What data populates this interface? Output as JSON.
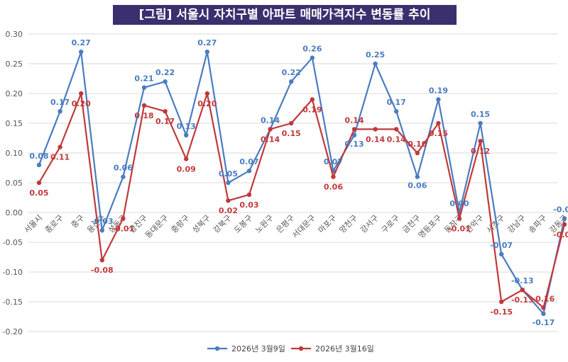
{
  "chart_data": {
    "type": "line",
    "title": "[그림] 서울시 자치구별 아파트 매매가격지수 변동률 추이",
    "categories": [
      "서울시",
      "종로구",
      "중구",
      "용산구",
      "성동구",
      "광진구",
      "동대문구",
      "중랑구",
      "성북구",
      "강북구",
      "도봉구",
      "노원구",
      "은평구",
      "서대문구",
      "마포구",
      "양천구",
      "강서구",
      "구로구",
      "금천구",
      "영등포구",
      "동작구",
      "관악구",
      "서초구",
      "강남구",
      "송파구",
      "강동구"
    ],
    "series": [
      {
        "name": "2026년 3월9일",
        "color": "#4a7cc0",
        "values": [
          0.08,
          0.17,
          0.27,
          -0.03,
          0.06,
          0.21,
          0.22,
          0.13,
          0.27,
          0.05,
          0.07,
          0.14,
          0.22,
          0.26,
          0.07,
          0.13,
          0.25,
          0.17,
          0.06,
          0.19,
          0.0,
          0.15,
          -0.07,
          -0.13,
          -0.17,
          -0.01
        ],
        "labels": [
          "0.08",
          "0.17",
          "0.27",
          "-0.03",
          "0.06",
          "0.21",
          "0.22",
          "0.13",
          "0.27",
          "0.05",
          "0.07",
          "0.14",
          "0.22",
          "0.26",
          "0.07",
          "0.13",
          "0.25",
          "0.17",
          "0.06",
          "0.19",
          "0.00",
          "0.15",
          "-0.07",
          "-0.13",
          "-0.17",
          "-0.01"
        ]
      },
      {
        "name": "2026년 3월16일",
        "color": "#c0393b",
        "values": [
          0.05,
          0.11,
          0.2,
          -0.08,
          -0.01,
          0.18,
          0.17,
          0.09,
          0.2,
          0.02,
          0.03,
          0.14,
          0.15,
          0.19,
          0.06,
          0.14,
          0.14,
          0.14,
          0.1,
          0.15,
          -0.01,
          0.12,
          -0.15,
          -0.13,
          -0.16,
          -0.02
        ],
        "labels": [
          "0.05",
          "0.11",
          "0.20",
          "-0.08",
          "-0.01",
          "0.18",
          "0.17",
          "0.09",
          "0.20",
          "0.02",
          "0.03",
          "0.14",
          "0.15",
          "0.19",
          "0.06",
          "0.14",
          "0.14",
          "0.14",
          "0.10",
          "0.15",
          "-0.01",
          "0.12",
          "-0.15",
          "-0.13",
          "-0.16",
          "-0.02"
        ]
      }
    ],
    "ylim": [
      -0.2,
      0.3
    ],
    "yticks": [
      -0.2,
      -0.15,
      -0.1,
      -0.05,
      0.0,
      0.05,
      0.1,
      0.15,
      0.2,
      0.25,
      0.3
    ],
    "ytick_labels": [
      "-0.20",
      "-0.15",
      "-0.10",
      "-0.05",
      "0.00",
      "0.05",
      "0.10",
      "0.15",
      "0.20",
      "0.25",
      "0.30"
    ],
    "grid": true,
    "legend_position": "bottom"
  }
}
